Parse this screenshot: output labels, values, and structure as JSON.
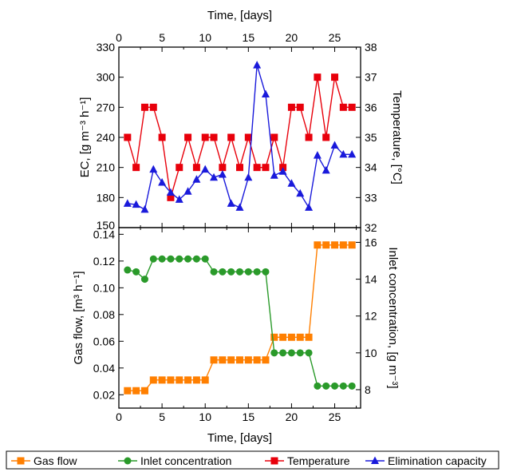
{
  "chart_data": [
    {
      "type": "line",
      "panel": "top",
      "top_xlabel": "Time, [days]",
      "ylabel_left": "EC, [g m⁻³ h⁻¹]",
      "ylabel_right": "Temperature, [°C]",
      "xlim": [
        0,
        28
      ],
      "ylim_left": [
        150,
        330
      ],
      "ylim_right": [
        32,
        38
      ],
      "x_ticks": [
        "0",
        "5",
        "10",
        "15",
        "20",
        "25"
      ],
      "y_ticks_left": [
        "150",
        "180",
        "210",
        "240",
        "270",
        "300",
        "330"
      ],
      "y_ticks_right": [
        "32",
        "33",
        "34",
        "35",
        "36",
        "37",
        "38"
      ],
      "series": [
        {
          "name": "Temperature",
          "axis": "right",
          "color": "#e8000b",
          "marker": "square",
          "x": [
            1,
            2,
            3,
            4,
            5,
            6,
            7,
            8,
            9,
            10,
            11,
            12,
            13,
            14,
            15,
            16,
            17,
            18,
            19,
            20,
            21,
            22,
            23,
            24,
            25,
            26,
            27
          ],
          "y": [
            35,
            34,
            36,
            36,
            35,
            33,
            34,
            35,
            34,
            35,
            35,
            34,
            35,
            34,
            35,
            34,
            34,
            35,
            34,
            36,
            36,
            35,
            37,
            35,
            37,
            36,
            36
          ]
        },
        {
          "name": "Elimination capacity",
          "axis": "left",
          "color": "#1a1adb",
          "marker": "triangle",
          "x": [
            1,
            2,
            3,
            4,
            5,
            6,
            7,
            8,
            9,
            10,
            11,
            12,
            13,
            14,
            15,
            16,
            17,
            18,
            19,
            20,
            21,
            22,
            23,
            24,
            25,
            26,
            27
          ],
          "y": [
            174,
            173,
            168,
            208,
            195,
            185,
            178,
            186,
            198,
            208,
            200,
            203,
            174,
            170,
            200,
            312,
            283,
            202,
            206,
            194,
            184,
            170,
            222,
            207,
            232,
            223,
            223
          ]
        }
      ]
    },
    {
      "type": "line",
      "panel": "bottom",
      "xlabel": "Time, [days]",
      "ylabel_left": "Gas flow, [m³ h⁻¹]",
      "ylabel_right": "Inlet concentration, [g m⁻³]",
      "xlim": [
        0,
        28
      ],
      "ylim_left": [
        0.01,
        0.145
      ],
      "ylim_right": [
        7,
        16.8
      ],
      "x_ticks": [
        "0",
        "5",
        "10",
        "15",
        "20",
        "25"
      ],
      "y_ticks_left": [
        "0.02",
        "0.04",
        "0.06",
        "0.08",
        "0.10",
        "0.12",
        "0.14"
      ],
      "y_ticks_right": [
        "8",
        "10",
        "12",
        "14",
        "16"
      ],
      "series": [
        {
          "name": "Gas flow",
          "axis": "left",
          "color": "#ff7f00",
          "marker": "square",
          "x": [
            1,
            2,
            3,
            4,
            5,
            6,
            7,
            8,
            9,
            10,
            11,
            12,
            13,
            14,
            15,
            16,
            17,
            18,
            19,
            20,
            21,
            22,
            23,
            24,
            25,
            26,
            27
          ],
          "y": [
            0.023,
            0.023,
            0.023,
            0.031,
            0.031,
            0.031,
            0.031,
            0.031,
            0.031,
            0.031,
            0.046,
            0.046,
            0.046,
            0.046,
            0.046,
            0.046,
            0.046,
            0.063,
            0.063,
            0.063,
            0.063,
            0.063,
            0.132,
            0.132,
            0.132,
            0.132,
            0.132
          ]
        },
        {
          "name": "Inlet concentration",
          "axis": "right",
          "color": "#2a9a2a",
          "marker": "circle",
          "x": [
            1,
            2,
            3,
            4,
            5,
            6,
            7,
            8,
            9,
            10,
            11,
            12,
            13,
            14,
            15,
            16,
            17,
            18,
            19,
            20,
            21,
            22,
            23,
            24,
            25,
            26,
            27
          ],
          "y": [
            14.5,
            14.4,
            14.0,
            15.1,
            15.1,
            15.1,
            15.1,
            15.1,
            15.1,
            15.1,
            14.4,
            14.4,
            14.4,
            14.4,
            14.4,
            14.4,
            14.4,
            10.0,
            10.0,
            10.0,
            10.0,
            10.0,
            8.2,
            8.2,
            8.2,
            8.2,
            8.2
          ]
        }
      ]
    }
  ],
  "legend": {
    "placement": "bottom",
    "items": [
      "Gas flow",
      "Inlet concentration",
      "Temperature",
      "Elimination capacity"
    ]
  }
}
